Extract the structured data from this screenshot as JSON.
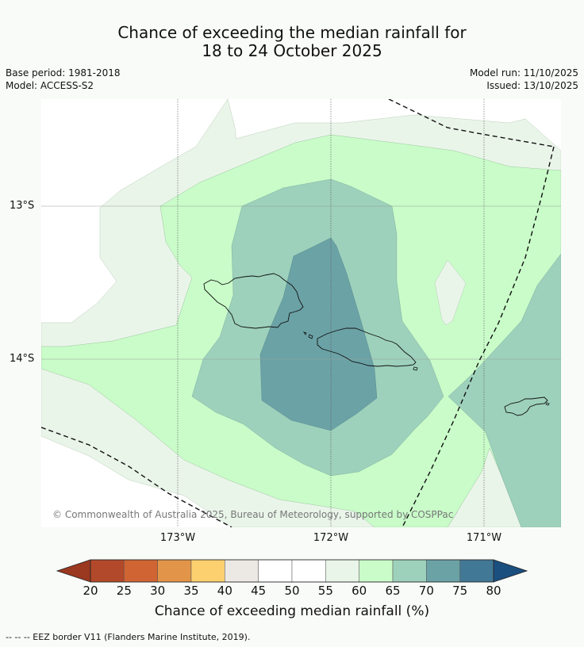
{
  "title_line1": "Chance of exceeding the median rainfall for",
  "title_line2": "18 to 24 October 2025",
  "base_period": "Base period: 1981-2018",
  "model": "Model: ACCESS-S2",
  "model_run": "Model run: 11/10/2025",
  "issued": "Issued: 13/10/2025",
  "copyright": "© Commonwealth of Australia 2025, Bureau of Meteorology, supported by COSPPac",
  "lon_labels": [
    "173°W",
    "172°W",
    "171°W"
  ],
  "lat_labels": [
    "13°S",
    "14°S"
  ],
  "colorbar": {
    "title": "Chance of exceeding median rainfall (%)",
    "ticks": [
      "20",
      "25",
      "30",
      "35",
      "40",
      "45",
      "50",
      "55",
      "60",
      "65",
      "70",
      "75",
      "80"
    ],
    "colors": [
      "#b2492a",
      "#d06433",
      "#e29549",
      "#fdd06f",
      "#ece9e4",
      "#ffffff",
      "#ffffff",
      "#eaf5ea",
      "#c9fcc9",
      "#9dd1bb",
      "#6ba2a6",
      "#417895"
    ],
    "under_color": "#9b3820",
    "over_color": "#1a4f80"
  },
  "footer": "--  --  -- EEZ border V11 (Flanders Marine Institute, 2019).",
  "colors": {
    "background": "#f9fbf8",
    "c55_60": "#eaf5ea",
    "c60_65": "#c9fcc9",
    "c65_70": "#9dd1bb",
    "c70_75": "#6ba2a6"
  }
}
